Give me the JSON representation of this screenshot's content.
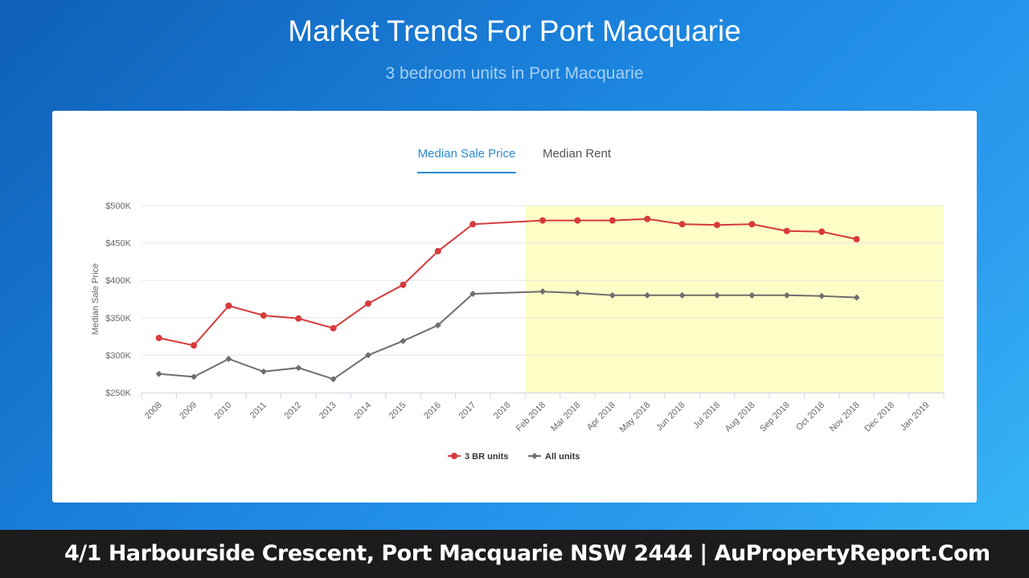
{
  "header": {
    "title": "Market Trends For Port Macquarie",
    "subtitle": "3 bedroom units in Port Macquarie"
  },
  "tabs": [
    {
      "label": "Median Sale Price",
      "active": true
    },
    {
      "label": "Median Rent",
      "active": false
    }
  ],
  "footer": {
    "text": "4/1 Harbourside Crescent, Port Macquarie NSW 2444 | AuPropertyReport.Com"
  },
  "colors": {
    "series_3br": "#d63a3a",
    "series_all": "#6e6e6e",
    "highlight_band": "#fdfdc6",
    "active_tab": "#2a8ad4"
  },
  "chart_data": {
    "type": "line",
    "title": "",
    "xlabel": "",
    "ylabel": "Median Sale Price",
    "ylim": [
      250000,
      500000
    ],
    "yticks": [
      "$250K",
      "$300K",
      "$350K",
      "$400K",
      "$450K",
      "$500K"
    ],
    "categories": [
      "2008",
      "2009",
      "2010",
      "2011",
      "2012",
      "2013",
      "2014",
      "2015",
      "2016",
      "2017",
      "2018",
      "Feb 2018",
      "Mar 2018",
      "Apr 2018",
      "May 2018",
      "Jun 2018",
      "Jul 2018",
      "Aug 2018",
      "Sep 2018",
      "Oct 2018",
      "Nov 2018",
      "Dec 2018",
      "Jan 2019"
    ],
    "highlight_from_category": "Feb 2018",
    "grid": true,
    "legend_position": "bottom-center",
    "series": [
      {
        "name": "3 BR units",
        "marker": "circle",
        "values": [
          323000,
          313000,
          366000,
          353000,
          349000,
          336000,
          369000,
          394000,
          439000,
          475000,
          null,
          480000,
          480000,
          480000,
          482000,
          475000,
          474000,
          475000,
          466000,
          465000,
          455000,
          null,
          null
        ]
      },
      {
        "name": "All units",
        "marker": "diamond",
        "values": [
          275000,
          271000,
          295000,
          278000,
          283000,
          268000,
          300000,
          319000,
          340000,
          382000,
          null,
          385000,
          383000,
          380000,
          380000,
          380000,
          380000,
          380000,
          380000,
          379000,
          377000,
          null,
          null
        ]
      }
    ]
  }
}
